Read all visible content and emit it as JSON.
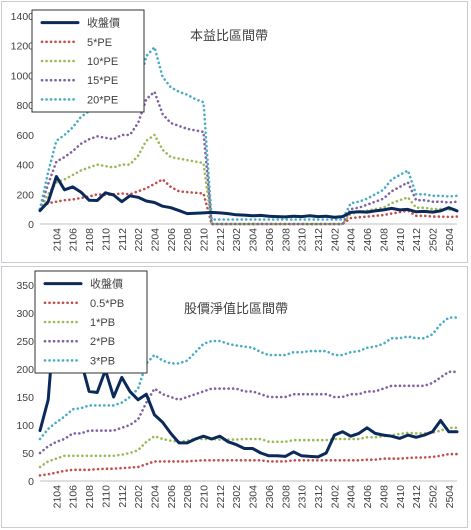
{
  "chart_data": [
    {
      "type": "line",
      "title": "本益比區間帶",
      "xlabel": "",
      "ylabel": "",
      "ylim": [
        0,
        1400
      ],
      "yticks": [
        0,
        200,
        400,
        600,
        800,
        1000,
        1200,
        1400
      ],
      "grid": false,
      "legend_position": "top-left",
      "x": [
        "2102",
        "2103",
        "2104",
        "2105",
        "2106",
        "2107",
        "2108",
        "2109",
        "2110",
        "2111",
        "2112",
        "2201",
        "2202",
        "2203",
        "2204",
        "2205",
        "2206",
        "2207",
        "2208",
        "2209",
        "2210",
        "2211",
        "2212",
        "2301",
        "2302",
        "2303",
        "2304",
        "2305",
        "2306",
        "2307",
        "2308",
        "2309",
        "2310",
        "2311",
        "2312",
        "2401",
        "2402",
        "2403",
        "2404",
        "2405",
        "2406",
        "2407",
        "2408",
        "2409",
        "2410",
        "2411",
        "2412",
        "2501",
        "2502",
        "2503",
        "2504",
        "2505"
      ],
      "xtick_labels": [
        "2104",
        "2106",
        "2108",
        "2110",
        "2112",
        "2202",
        "2204",
        "2206",
        "2208",
        "2210",
        "2212",
        "2302",
        "2304",
        "2306",
        "2308",
        "2310",
        "2312",
        "2402",
        "2404",
        "2406",
        "2408",
        "2410",
        "2412",
        "2502",
        "2504"
      ],
      "series": [
        {
          "name": "收盤價",
          "color": "#0b2a5b",
          "style": "solid",
          "values": [
            90,
            150,
            320,
            230,
            250,
            215,
            160,
            158,
            210,
            195,
            150,
            190,
            180,
            155,
            145,
            120,
            110,
            90,
            70,
            72,
            75,
            78,
            75,
            70,
            62,
            60,
            55,
            58,
            52,
            50,
            48,
            52,
            50,
            55,
            50,
            52,
            45,
            50,
            78,
            82,
            80,
            88,
            95,
            105,
            95,
            98,
            82,
            85,
            80,
            88,
            110,
            88
          ]
        },
        {
          "name": "5*PE",
          "color": "#c0504d",
          "style": "dotted",
          "values": [
            100,
            140,
            150,
            160,
            165,
            175,
            185,
            200,
            195,
            200,
            205,
            200,
            220,
            240,
            270,
            300,
            250,
            220,
            215,
            210,
            205,
            0,
            0,
            0,
            0,
            0,
            0,
            0,
            0,
            0,
            0,
            0,
            0,
            0,
            0,
            0,
            0,
            0,
            40,
            45,
            50,
            55,
            60,
            70,
            80,
            90,
            55,
            55,
            50,
            50,
            48,
            50
          ]
        },
        {
          "name": "10*PE",
          "color": "#9bbb59",
          "style": "dotted",
          "values": [
            100,
            200,
            280,
            300,
            330,
            360,
            380,
            400,
            390,
            380,
            400,
            400,
            460,
            560,
            600,
            500,
            450,
            440,
            430,
            420,
            410,
            0,
            0,
            0,
            0,
            0,
            0,
            0,
            0,
            0,
            0,
            0,
            0,
            0,
            0,
            0,
            0,
            0,
            70,
            80,
            90,
            100,
            110,
            140,
            160,
            180,
            110,
            110,
            100,
            100,
            96,
            100
          ]
        },
        {
          "name": "15*PE",
          "color": "#8064a2",
          "style": "dotted",
          "values": [
            100,
            270,
            420,
            450,
            490,
            540,
            570,
            590,
            580,
            570,
            600,
            600,
            680,
            840,
            890,
            740,
            680,
            660,
            640,
            630,
            620,
            0,
            0,
            0,
            0,
            0,
            0,
            0,
            0,
            0,
            0,
            0,
            0,
            0,
            0,
            0,
            0,
            0,
            100,
            110,
            130,
            150,
            170,
            220,
            250,
            280,
            160,
            160,
            150,
            150,
            145,
            150
          ]
        },
        {
          "name": "20*PE",
          "color": "#4bacc6",
          "style": "dotted",
          "values": [
            100,
            350,
            560,
            600,
            650,
            720,
            760,
            780,
            770,
            760,
            800,
            800,
            910,
            1130,
            1190,
            990,
            920,
            890,
            870,
            840,
            820,
            30,
            30,
            30,
            30,
            30,
            30,
            30,
            30,
            30,
            30,
            30,
            30,
            30,
            30,
            30,
            30,
            30,
            140,
            150,
            170,
            200,
            230,
            300,
            330,
            360,
            200,
            200,
            190,
            190,
            185,
            190
          ]
        }
      ]
    },
    {
      "type": "line",
      "title": "股價淨值比區間帶",
      "xlabel": "",
      "ylabel": "",
      "ylim": [
        0,
        350
      ],
      "yticks": [
        0,
        50,
        100,
        150,
        200,
        250,
        300,
        350
      ],
      "grid": false,
      "legend_position": "top-left",
      "x": [
        "2102",
        "2103",
        "2104",
        "2105",
        "2106",
        "2107",
        "2108",
        "2109",
        "2110",
        "2111",
        "2112",
        "2201",
        "2202",
        "2203",
        "2204",
        "2205",
        "2206",
        "2207",
        "2208",
        "2209",
        "2210",
        "2211",
        "2212",
        "2301",
        "2302",
        "2303",
        "2304",
        "2305",
        "2306",
        "2307",
        "2308",
        "2309",
        "2310",
        "2311",
        "2312",
        "2401",
        "2402",
        "2403",
        "2404",
        "2405",
        "2406",
        "2407",
        "2408",
        "2409",
        "2410",
        "2411",
        "2412",
        "2501",
        "2502",
        "2503",
        "2504",
        "2505"
      ],
      "xtick_labels": [
        "2104",
        "2106",
        "2108",
        "2110",
        "2112",
        "2202",
        "2204",
        "2206",
        "2208",
        "2210",
        "2212",
        "2302",
        "2304",
        "2306",
        "2308",
        "2310",
        "2312",
        "2402",
        "2404",
        "2406",
        "2408",
        "2410",
        "2412",
        "2502",
        "2504"
      ],
      "series": [
        {
          "name": "收盤價",
          "color": "#0b2a5b",
          "style": "solid",
          "values": [
            90,
            145,
            330,
            230,
            250,
            215,
            160,
            158,
            198,
            150,
            185,
            160,
            145,
            155,
            118,
            105,
            85,
            68,
            68,
            75,
            80,
            75,
            80,
            70,
            65,
            58,
            58,
            50,
            45,
            45,
            44,
            52,
            45,
            44,
            43,
            50,
            82,
            88,
            80,
            85,
            95,
            85,
            82,
            80,
            76,
            82,
            78,
            82,
            88,
            108,
            88,
            88
          ]
        },
        {
          "name": "0.5*PB",
          "color": "#c0504d",
          "style": "dotted",
          "values": [
            10,
            12,
            15,
            18,
            20,
            20,
            20,
            21,
            22,
            22,
            23,
            24,
            25,
            30,
            35,
            35,
            35,
            35,
            35,
            36,
            37,
            37,
            37,
            37,
            37,
            37,
            37,
            37,
            35,
            35,
            35,
            37,
            37,
            37,
            37,
            37,
            37,
            37,
            37,
            37,
            38,
            38,
            40,
            40,
            40,
            41,
            42,
            42,
            43,
            45,
            48,
            48
          ]
        },
        {
          "name": "1*PB",
          "color": "#9bbb59",
          "style": "dotted",
          "values": [
            25,
            35,
            40,
            45,
            45,
            45,
            45,
            45,
            45,
            45,
            47,
            50,
            55,
            70,
            80,
            75,
            72,
            70,
            72,
            75,
            75,
            75,
            74,
            74,
            74,
            75,
            75,
            75,
            70,
            70,
            70,
            73,
            73,
            73,
            73,
            73,
            75,
            75,
            75,
            75,
            78,
            78,
            80,
            82,
            84,
            86,
            85,
            85,
            86,
            90,
            95,
            95
          ]
        },
        {
          "name": "2*PB",
          "color": "#8064a2",
          "style": "dotted",
          "values": [
            50,
            62,
            70,
            75,
            85,
            85,
            90,
            90,
            90,
            90,
            95,
            100,
            110,
            140,
            165,
            155,
            150,
            145,
            150,
            155,
            160,
            165,
            165,
            165,
            165,
            160,
            160,
            155,
            150,
            150,
            150,
            155,
            155,
            155,
            155,
            155,
            150,
            150,
            155,
            155,
            160,
            160,
            165,
            170,
            170,
            170,
            170,
            170,
            175,
            185,
            195,
            195
          ]
        },
        {
          "name": "3*PB",
          "color": "#4bacc6",
          "style": "dotted",
          "values": [
            75,
            93,
            105,
            115,
            128,
            130,
            135,
            135,
            135,
            135,
            140,
            150,
            165,
            210,
            225,
            215,
            210,
            210,
            215,
            230,
            245,
            250,
            250,
            245,
            242,
            240,
            238,
            230,
            225,
            225,
            225,
            230,
            230,
            232,
            232,
            232,
            225,
            225,
            230,
            232,
            238,
            240,
            245,
            255,
            255,
            258,
            255,
            255,
            262,
            280,
            292,
            292
          ]
        }
      ]
    }
  ]
}
